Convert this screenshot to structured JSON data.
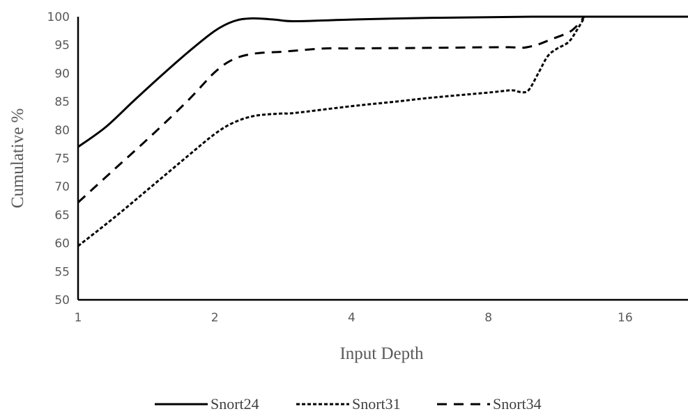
{
  "chart_data": {
    "type": "line",
    "title": "",
    "xlabel": "Input Depth",
    "ylabel": "Cumulative %",
    "x_scale": "log2",
    "xlim": [
      1,
      22
    ],
    "ylim": [
      50,
      100
    ],
    "x_ticks": [
      1,
      2,
      4,
      8,
      16
    ],
    "x_tick_labels": [
      "1",
      "2",
      "4",
      "8",
      "16"
    ],
    "y_ticks": [
      50,
      55,
      60,
      65,
      70,
      75,
      80,
      85,
      90,
      95,
      100
    ],
    "y_tick_labels": [
      "50",
      "55",
      "60",
      "65",
      "70",
      "75",
      "80",
      "85",
      "90",
      "95",
      "100"
    ],
    "grid": false,
    "legend_position": "bottom",
    "series": [
      {
        "name": "Snort24",
        "style": "solid",
        "color": "#000000",
        "x": [
          1,
          1.15,
          1.32,
          1.52,
          1.75,
          2.0,
          2.2,
          2.4,
          2.7,
          3.0,
          4.0,
          6.0,
          8.0,
          10.0,
          12.0,
          16.0,
          22.0
        ],
        "y": [
          77.0,
          80.5,
          85.0,
          89.5,
          93.8,
          97.5,
          99.2,
          99.7,
          99.5,
          99.2,
          99.5,
          99.8,
          99.9,
          100,
          100,
          100,
          100
        ]
      },
      {
        "name": "Snort31",
        "style": "dotted",
        "color": "#000000",
        "x": [
          1,
          1.2,
          1.45,
          1.75,
          2.0,
          2.2,
          2.45,
          2.8,
          3.0,
          4.0,
          5.0,
          6.0,
          8.0,
          9.0,
          9.4,
          9.8,
          10.3,
          10.8,
          11.3,
          12.0,
          12.5,
          13.0
        ],
        "y": [
          59.5,
          64.5,
          70.0,
          75.5,
          79.3,
          81.3,
          82.5,
          82.9,
          83.0,
          84.2,
          85.0,
          85.7,
          86.6,
          87.0,
          86.7,
          87.0,
          90.0,
          93.0,
          94.3,
          95.5,
          97.5,
          99.8
        ]
      },
      {
        "name": "Snort34",
        "style": "dashed",
        "color": "#000000",
        "x": [
          1,
          1.2,
          1.45,
          1.75,
          2.0,
          2.2,
          2.45,
          2.8,
          3.0,
          3.5,
          4.0,
          6.0,
          8.0,
          9.0,
          9.5,
          10.2,
          11.0,
          12.0,
          12.5,
          13.0
        ],
        "y": [
          67.2,
          73.0,
          79.0,
          85.3,
          90.2,
          92.5,
          93.5,
          93.8,
          94.0,
          94.4,
          94.4,
          94.5,
          94.6,
          94.6,
          94.5,
          95.0,
          96.0,
          97.2,
          98.3,
          100
        ]
      }
    ]
  }
}
